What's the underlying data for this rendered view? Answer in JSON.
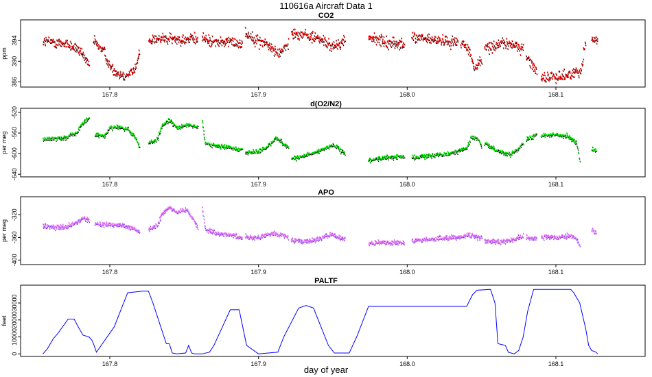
{
  "figure_title": "110616a   Aircraft Data 1",
  "x_axis_label": "day of year",
  "chart_data": [
    {
      "type": "scatter",
      "title": "CO2",
      "ylabel": "ppm",
      "xlim": [
        167.74,
        168.16
      ],
      "ylim": [
        385,
        398
      ],
      "xticks": [
        167.8,
        167.9,
        168.0,
        168.1
      ],
      "xtick_labels": [
        "167.8",
        "167.9",
        "168.0",
        "168.1"
      ],
      "yticks": [
        386,
        390,
        394
      ],
      "ytick_labels": [
        "386",
        "390",
        "394"
      ],
      "point_color": "#ff0000",
      "shadow_color": "#000000",
      "noise": 1.0,
      "segments": [
        {
          "x": [
            167.755,
            167.77,
            167.778,
            167.783,
            167.786
          ],
          "y": [
            394,
            393.5,
            392.5,
            390.5,
            389.5
          ]
        },
        {
          "x": [
            167.789,
            167.796,
            167.8,
            167.806,
            167.812,
            167.817,
            167.82
          ],
          "y": [
            394,
            392,
            389,
            387.5,
            387.5,
            388.5,
            391.5
          ]
        },
        {
          "x": [
            167.826,
            167.84,
            167.85,
            167.859
          ],
          "y": [
            394.3,
            394.4,
            394.2,
            394.4
          ]
        },
        {
          "x": [
            167.862,
            167.872,
            167.882,
            167.889
          ],
          "y": [
            394.5,
            393.7,
            393.8,
            393.5
          ]
        },
        {
          "x": [
            167.891,
            167.9,
            167.905,
            167.913,
            167.92
          ],
          "y": [
            395.5,
            394,
            393.5,
            391.5,
            393.5
          ]
        },
        {
          "x": [
            167.922,
            167.93,
            167.94,
            167.95,
            167.958
          ],
          "y": [
            395.5,
            395.3,
            394.5,
            392.8,
            394
          ]
        },
        {
          "x": [
            167.974,
            167.985,
            167.995,
            167.998
          ],
          "y": [
            394.8,
            393.7,
            393.5,
            393
          ]
        },
        {
          "x": [
            168.003,
            168.015,
            168.025,
            168.034
          ],
          "y": [
            394.7,
            394.2,
            394,
            393.8
          ]
        },
        {
          "x": [
            168.036,
            168.042,
            168.045,
            168.05
          ],
          "y": [
            394,
            392,
            388.5,
            390.5
          ]
        },
        {
          "x": [
            168.052,
            168.062,
            168.072,
            168.078
          ],
          "y": [
            392.5,
            393.5,
            393.2,
            392.5
          ]
        },
        {
          "x": [
            168.08,
            168.085,
            168.087
          ],
          "y": [
            391,
            389,
            388
          ]
        },
        {
          "x": [
            168.09,
            168.1,
            168.11,
            168.117,
            168.12
          ],
          "y": [
            387,
            387,
            387.5,
            388.5,
            394
          ]
        },
        {
          "x": [
            168.124,
            168.128
          ],
          "y": [
            394.5,
            394.2
          ]
        }
      ]
    },
    {
      "type": "scatter",
      "title": "d(O2/N2)",
      "ylabel": "per meg",
      "xlim": [
        167.74,
        168.16
      ],
      "ylim": [
        -645,
        -512
      ],
      "xticks": [
        167.8,
        167.9,
        168.0,
        168.1
      ],
      "xtick_labels": [
        "167.8",
        "167.9",
        "168.0",
        "168.1"
      ],
      "yticks": [
        -640,
        -600,
        -560,
        -520
      ],
      "ytick_labels": [
        "-640",
        "-600",
        "-560",
        "-520"
      ],
      "point_color": "#00ee00",
      "shadow_color": "#000000",
      "noise": 4,
      "segments": [
        {
          "x": [
            167.755,
            167.77,
            167.778,
            167.782,
            167.786
          ],
          "y": [
            -572,
            -568,
            -558,
            -540,
            -530
          ]
        },
        {
          "x": [
            167.79,
            167.796,
            167.8,
            167.805,
            167.812,
            167.818,
            167.82
          ],
          "y": [
            -563,
            -566,
            -548,
            -548,
            -552,
            -572,
            -588
          ]
        },
        {
          "x": [
            167.826,
            167.832,
            167.835,
            167.84,
            167.845,
            167.852,
            167.859
          ],
          "y": [
            -578,
            -572,
            -545,
            -535,
            -550,
            -542,
            -548
          ]
        },
        {
          "x": [
            167.862,
            167.864,
            167.872,
            167.882,
            167.889
          ],
          "y": [
            -535,
            -580,
            -585,
            -587,
            -592
          ]
        },
        {
          "x": [
            167.891,
            167.9,
            167.905,
            167.912,
            167.92
          ],
          "y": [
            -597,
            -595,
            -588,
            -568,
            -588
          ]
        },
        {
          "x": [
            167.922,
            167.93,
            167.94,
            167.95,
            167.958
          ],
          "y": [
            -608,
            -605,
            -595,
            -582,
            -600
          ]
        },
        {
          "x": [
            167.974,
            167.985,
            167.995,
            167.998
          ],
          "y": [
            -612,
            -607,
            -605,
            -605
          ]
        },
        {
          "x": [
            168.003,
            168.015,
            168.025,
            168.034,
            168.04,
            168.043,
            168.047,
            168.05
          ],
          "y": [
            -608,
            -603,
            -600,
            -595,
            -588,
            -568,
            -570,
            -585
          ]
        },
        {
          "x": [
            168.052,
            168.06,
            168.068,
            168.074,
            168.078
          ],
          "y": [
            -580,
            -592,
            -602,
            -590,
            -580
          ]
        },
        {
          "x": [
            168.08,
            168.085,
            168.087
          ],
          "y": [
            -572,
            -565,
            -560
          ]
        },
        {
          "x": [
            168.09,
            168.1,
            168.108,
            168.114,
            168.116
          ],
          "y": [
            -563,
            -563,
            -565,
            -580,
            -615
          ]
        },
        {
          "x": [
            168.124,
            168.127
          ],
          "y": [
            -590,
            -595
          ]
        }
      ]
    },
    {
      "type": "scatter",
      "title": "APO",
      "ylabel": "per meg",
      "xlim": [
        167.74,
        168.16
      ],
      "ylim": [
        -408,
        -288
      ],
      "xticks": [
        167.8,
        167.9,
        168.0,
        168.1
      ],
      "xtick_labels": [
        "167.8",
        "167.9",
        "168.0",
        "168.1"
      ],
      "yticks": [
        -400,
        -360,
        -320
      ],
      "ytick_labels": [
        "-400",
        "-360",
        "-320"
      ],
      "point_color": "#ee77ee",
      "shadow_color": "#7733ff",
      "noise": 4,
      "segments": [
        {
          "x": [
            167.755,
            167.77,
            167.778,
            167.782,
            167.786
          ],
          "y": [
            -340,
            -342,
            -333,
            -325,
            -330
          ]
        },
        {
          "x": [
            167.79,
            167.8,
            167.81,
            167.815,
            167.82
          ],
          "y": [
            -336,
            -337,
            -338,
            -342,
            -350
          ]
        },
        {
          "x": [
            167.826,
            167.832,
            167.835,
            167.84,
            167.845,
            167.852,
            167.859
          ],
          "y": [
            -345,
            -338,
            -318,
            -305,
            -315,
            -310,
            -340
          ]
        },
        {
          "x": [
            167.862,
            167.864,
            167.872,
            167.882,
            167.889
          ],
          "y": [
            -305,
            -345,
            -352,
            -355,
            -360
          ]
        },
        {
          "x": [
            167.891,
            167.9,
            167.91,
            167.92
          ],
          "y": [
            -358,
            -360,
            -352,
            -358
          ]
        },
        {
          "x": [
            167.922,
            167.935,
            167.948,
            167.958
          ],
          "y": [
            -365,
            -366,
            -355,
            -362
          ]
        },
        {
          "x": [
            167.974,
            167.985,
            167.998
          ],
          "y": [
            -370,
            -368,
            -368
          ]
        },
        {
          "x": [
            168.003,
            168.015,
            168.025,
            168.034,
            168.04,
            168.05
          ],
          "y": [
            -365,
            -363,
            -360,
            -360,
            -355,
            -360
          ]
        },
        {
          "x": [
            168.052,
            168.062,
            168.072,
            168.078
          ],
          "y": [
            -365,
            -368,
            -362,
            -358
          ]
        },
        {
          "x": [
            168.08,
            168.087
          ],
          "y": [
            -360,
            -360
          ]
        },
        {
          "x": [
            168.09,
            168.1,
            168.11,
            168.114,
            168.116
          ],
          "y": [
            -358,
            -360,
            -357,
            -362,
            -375
          ]
        },
        {
          "x": [
            168.124,
            168.127
          ],
          "y": [
            -345,
            -352
          ]
        }
      ]
    },
    {
      "type": "line",
      "title": "PALTF",
      "ylabel": "feet",
      "xlim": [
        167.74,
        168.16
      ],
      "ylim": [
        -1500,
        40500
      ],
      "xticks": [
        167.8,
        167.9,
        168.0,
        168.1
      ],
      "xtick_labels": [
        "167.8",
        "167.9",
        "168.0",
        "168.1"
      ],
      "yticks": [
        0,
        10000,
        20000,
        30000
      ],
      "ytick_labels": [
        "0",
        "10000",
        "20000",
        "30000"
      ],
      "line_color": "#0000ff",
      "x": [
        167.755,
        167.758,
        167.762,
        167.765,
        167.772,
        167.776,
        167.779,
        167.782,
        167.786,
        167.788,
        167.789,
        167.791,
        167.803,
        167.807,
        167.812,
        167.822,
        167.826,
        167.829,
        167.832,
        167.838,
        167.84,
        167.842,
        167.845,
        167.851,
        167.853,
        167.855,
        167.857,
        167.862,
        167.867,
        167.87,
        167.881,
        167.887,
        167.892,
        167.9,
        167.913,
        167.917,
        167.927,
        167.932,
        167.937,
        167.947,
        167.951,
        167.961,
        167.966,
        167.974,
        167.993,
        168.04,
        168.044,
        168.047,
        168.056,
        168.059,
        168.061,
        168.066,
        168.068,
        168.072,
        168.075,
        168.078,
        168.081,
        168.085,
        168.11,
        168.112,
        168.116,
        168.12,
        168.122,
        168.124,
        168.127,
        168.128
      ],
      "y": [
        0,
        3000,
        9000,
        12000,
        20500,
        20500,
        15500,
        11000,
        10000,
        8000,
        6000,
        1000,
        16000,
        25000,
        36000,
        37000,
        37000,
        30000,
        22000,
        6000,
        6000,
        500,
        0,
        500,
        5000,
        500,
        0,
        0,
        1000,
        5000,
        26000,
        26000,
        5000,
        0,
        1000,
        10000,
        27000,
        28500,
        27000,
        5000,
        500,
        500,
        10000,
        28000,
        28000,
        28000,
        35000,
        37500,
        38000,
        30000,
        6000,
        5000,
        1000,
        0,
        2000,
        10000,
        25000,
        38000,
        38000,
        36000,
        30000,
        15000,
        5000,
        2000,
        1000,
        0
      ]
    }
  ]
}
